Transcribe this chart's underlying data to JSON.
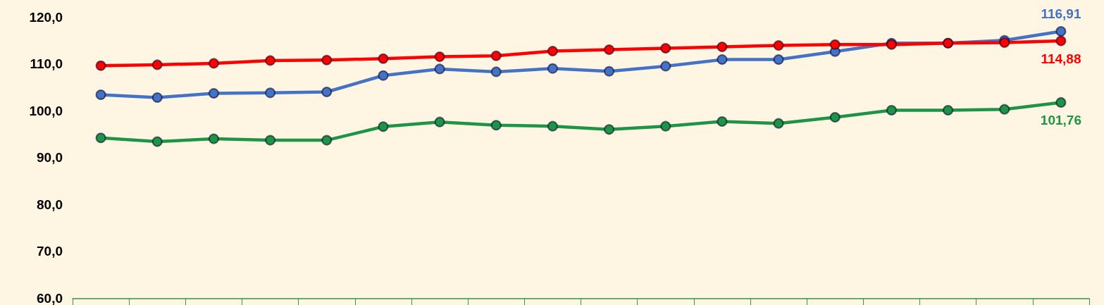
{
  "chart_data": {
    "type": "line",
    "categories": [
      null,
      null,
      null,
      null,
      null,
      null,
      null,
      null,
      null,
      null,
      null,
      null,
      null,
      null,
      null,
      null,
      null,
      null
    ],
    "series": [
      {
        "color": "#4472c4",
        "values": [
          103.4,
          102.8,
          103.7,
          103.8,
          104.0,
          107.5,
          108.9,
          108.3,
          109.0,
          108.4,
          109.5,
          110.9,
          110.9,
          112.6,
          114.4,
          114.4,
          115.0,
          116.91
        ],
        "value_labels": [
          null,
          null,
          null,
          null,
          null,
          null,
          null,
          null,
          null,
          null,
          null,
          null,
          null,
          null,
          null,
          null,
          null,
          "116,91"
        ]
      },
      {
        "color": "#ff0000",
        "values": [
          109.6,
          109.8,
          110.1,
          110.7,
          110.8,
          111.1,
          111.5,
          111.7,
          112.7,
          113.0,
          113.3,
          113.6,
          113.9,
          114.1,
          114.1,
          114.4,
          114.5,
          114.88
        ],
        "value_labels": [
          null,
          null,
          null,
          null,
          null,
          null,
          null,
          null,
          null,
          null,
          null,
          null,
          null,
          null,
          null,
          null,
          null,
          "114,88"
        ]
      },
      {
        "color": "#1e9446",
        "values": [
          94.2,
          93.4,
          94.0,
          93.7,
          93.7,
          96.6,
          97.6,
          96.9,
          96.7,
          96.0,
          96.7,
          97.7,
          97.3,
          98.6,
          100.1,
          100.1,
          100.3,
          101.76
        ],
        "value_labels": [
          null,
          null,
          null,
          null,
          null,
          null,
          null,
          null,
          null,
          null,
          null,
          null,
          null,
          null,
          null,
          null,
          null,
          "101,76"
        ]
      }
    ],
    "ylim": [
      60,
      120
    ],
    "yticks": [
      {
        "value": 60,
        "label": "60,0"
      },
      {
        "value": 70,
        "label": "70,0"
      },
      {
        "value": 80,
        "label": "80,0"
      },
      {
        "value": 90,
        "label": "90,0"
      },
      {
        "value": 100,
        "label": "100,0"
      },
      {
        "value": 110,
        "label": "110,0"
      },
      {
        "value": 120,
        "label": "120,0"
      }
    ],
    "grid": false,
    "marker": "circle",
    "line_style": "solid"
  }
}
